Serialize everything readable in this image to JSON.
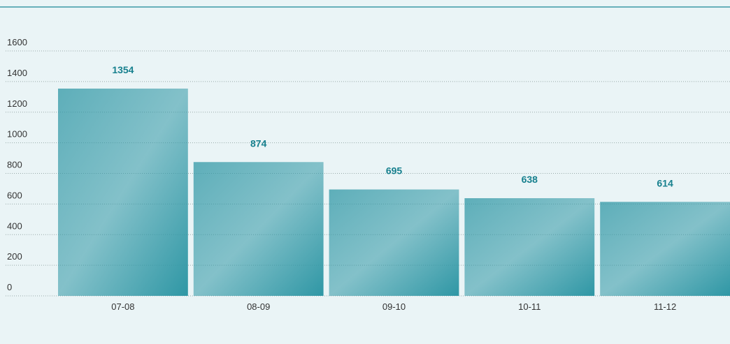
{
  "chart_data": {
    "type": "bar",
    "categories": [
      "07-08",
      "08-09",
      "09-10",
      "10-11",
      "11-12"
    ],
    "values": [
      1354,
      874,
      695,
      638,
      614
    ],
    "color": "#2f97a5",
    "ylim": [
      0,
      1600
    ],
    "yticks": [
      0,
      200,
      400,
      600,
      800,
      1000,
      1200,
      1400,
      1600
    ],
    "grid": true
  }
}
